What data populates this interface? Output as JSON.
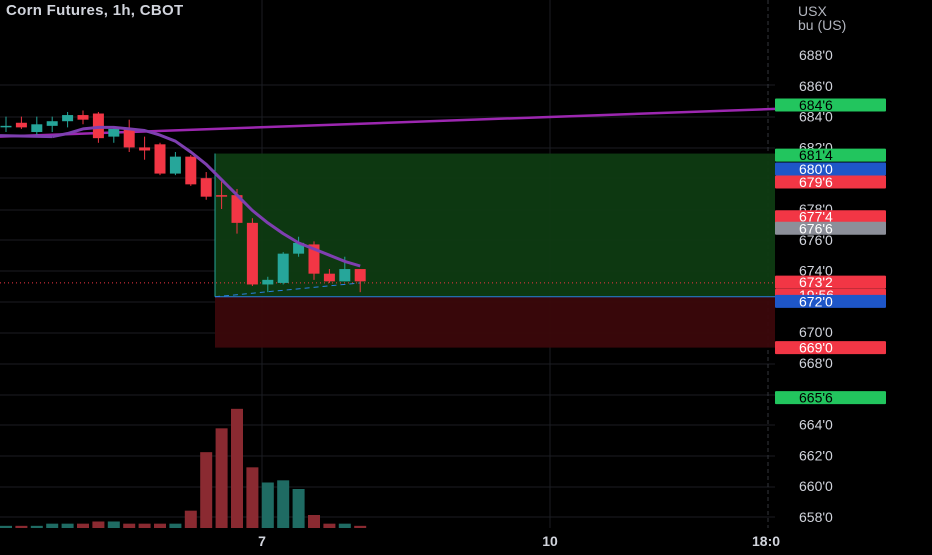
{
  "header": {
    "title": "Corn Futures, 1h, CBOT",
    "unit_line1": "USX",
    "unit_line2": "bu (US)"
  },
  "chart_data": {
    "type": "candlestick",
    "title": "Corn Futures, 1h, CBOT",
    "y_unit": "USX bu (US)",
    "ylim": [
      657.2,
      689.0
    ],
    "y_ticks": [
      "688'0",
      "686'0",
      "684'0",
      "682'0",
      "678'0",
      "676'0",
      "674'0",
      "670'0",
      "668'0",
      "664'0",
      "662'0",
      "660'0",
      "658'0"
    ],
    "x_ticks": [
      "7",
      "10",
      "18:0"
    ],
    "grid": true,
    "candles": [
      {
        "o": 683.4,
        "h": 684.0,
        "l": 683.0,
        "c": 683.4
      },
      {
        "o": 683.6,
        "h": 684.0,
        "l": 683.2,
        "c": 683.3
      },
      {
        "o": 683.0,
        "h": 684.0,
        "l": 682.8,
        "c": 683.5
      },
      {
        "o": 683.4,
        "h": 684.0,
        "l": 683.0,
        "c": 683.7
      },
      {
        "o": 683.7,
        "h": 684.3,
        "l": 683.3,
        "c": 684.1
      },
      {
        "o": 684.1,
        "h": 684.4,
        "l": 683.5,
        "c": 683.8
      },
      {
        "o": 684.2,
        "h": 684.3,
        "l": 682.3,
        "c": 682.6
      },
      {
        "o": 682.7,
        "h": 683.3,
        "l": 682.3,
        "c": 683.2
      },
      {
        "o": 683.2,
        "h": 683.8,
        "l": 681.7,
        "c": 682.0
      },
      {
        "o": 682.0,
        "h": 682.7,
        "l": 681.2,
        "c": 681.8
      },
      {
        "o": 682.2,
        "h": 682.3,
        "l": 680.2,
        "c": 680.3
      },
      {
        "o": 680.3,
        "h": 681.7,
        "l": 680.2,
        "c": 681.4
      },
      {
        "o": 681.4,
        "h": 681.5,
        "l": 679.5,
        "c": 679.6
      },
      {
        "o": 680.0,
        "h": 680.4,
        "l": 678.6,
        "c": 678.8
      },
      {
        "o": 678.9,
        "h": 679.8,
        "l": 678.0,
        "c": 678.8
      },
      {
        "o": 678.9,
        "h": 679.3,
        "l": 676.4,
        "c": 677.1
      },
      {
        "o": 677.1,
        "h": 677.4,
        "l": 673.0,
        "c": 673.1
      },
      {
        "o": 673.1,
        "h": 673.6,
        "l": 672.6,
        "c": 673.4
      },
      {
        "o": 673.2,
        "h": 675.2,
        "l": 673.1,
        "c": 675.1
      },
      {
        "o": 675.1,
        "h": 676.2,
        "l": 674.9,
        "c": 675.8
      },
      {
        "o": 675.7,
        "h": 675.9,
        "l": 673.4,
        "c": 673.8
      },
      {
        "o": 673.8,
        "h": 674.1,
        "l": 673.2,
        "c": 673.3
      },
      {
        "o": 673.3,
        "h": 674.9,
        "l": 673.3,
        "c": 674.1
      },
      {
        "o": 674.1,
        "h": 674.1,
        "l": 672.6,
        "c": 673.3
      }
    ],
    "volume": [
      1,
      1,
      1,
      2,
      2,
      2,
      3,
      3,
      2,
      2,
      2,
      2,
      8,
      35,
      46,
      55,
      28,
      21,
      22,
      18,
      6,
      2,
      2,
      1
    ],
    "volume_max": 60,
    "moving_average": {
      "color": "#7e3fb0",
      "values": [
        null,
        null,
        null,
        682.7,
        682.9,
        683.2,
        683.3,
        683.3,
        683.2,
        683.1,
        682.8,
        682.4,
        681.7,
        680.9,
        679.9,
        678.9,
        677.9,
        677.1,
        676.4,
        675.8,
        675.4,
        675.0,
        674.6,
        674.3
      ]
    },
    "trend_line": {
      "color": "#9c27b0",
      "start": 682.7,
      "end": 684.5
    },
    "position": {
      "entry": 672.3,
      "target": 681.6,
      "stop": 669.0
    },
    "current_price_line": 673.2,
    "price_labels": [
      {
        "text": "684'6",
        "value": 684.75,
        "bg": "#22c55e",
        "fg": "#000000"
      },
      {
        "text": "681'4",
        "value": 681.5,
        "bg": "#22c55e",
        "fg": "#000000"
      },
      {
        "text": "680'0",
        "value": 680.6,
        "bg": "#1e56c8",
        "fg": "#ffffff"
      },
      {
        "text": "679'6",
        "value": 679.75,
        "bg": "#f23645",
        "fg": "#ffffff"
      },
      {
        "text": "677'4",
        "value": 677.5,
        "bg": "#f23645",
        "fg": "#ffffff"
      },
      {
        "text": "676'6",
        "value": 676.75,
        "bg": "#8c8f99",
        "fg": "#ffffff"
      },
      {
        "text": "673'2",
        "value": 673.25,
        "bg": "#f23645",
        "fg": "#ffffff"
      },
      {
        "text": "19:56",
        "value": 672.4,
        "bg": "#f23645",
        "fg": "#ffffff"
      },
      {
        "text": "672'0",
        "value": 672.0,
        "bg": "#1e56c8",
        "fg": "#ffffff"
      },
      {
        "text": "669'0",
        "value": 669.0,
        "bg": "#f23645",
        "fg": "#ffffff"
      },
      {
        "text": "665'6",
        "value": 665.75,
        "bg": "#22c55e",
        "fg": "#000000"
      }
    ],
    "colors": {
      "up": "#26a69a",
      "down": "#f23645",
      "target_zone": "#0e3b12",
      "stop_zone": "#3b070b"
    }
  }
}
